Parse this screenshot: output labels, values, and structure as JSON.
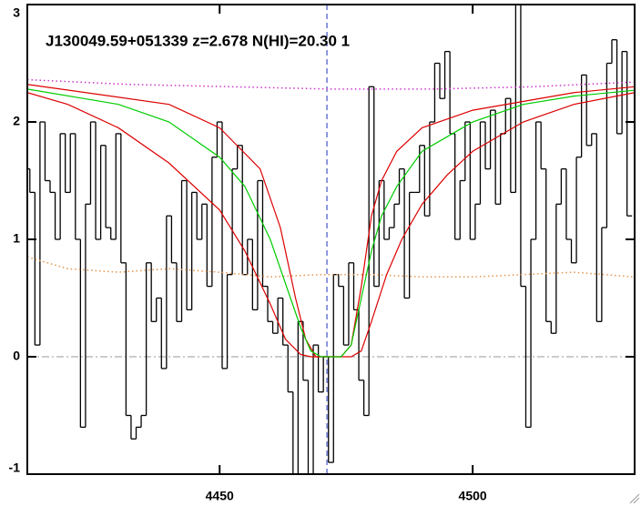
{
  "chart_data": {
    "type": "line",
    "title": "J130049.59+051339 z=2.678 N(HI)=20.30 1",
    "xlim": [
      4412,
      4532
    ],
    "ylim": [
      -1,
      3
    ],
    "xticks": [
      4450,
      4500
    ],
    "yticks": [
      -1,
      0,
      1,
      2,
      3
    ],
    "marker_x": 4471.2,
    "zero_line": 0,
    "series": [
      {
        "color": "#000000",
        "style": "step",
        "x": [
          4412,
          4413,
          4414,
          4415,
          4416,
          4417,
          4418,
          4419,
          4420,
          4421,
          4422,
          4423,
          4424,
          4425,
          4426,
          4427,
          4428,
          4429,
          4430,
          4431,
          4432,
          4433,
          4434,
          4435,
          4436,
          4437,
          4438,
          4439,
          4440,
          4441,
          4442,
          4443,
          4444,
          4445,
          4446,
          4447,
          4448,
          4449,
          4450,
          4451,
          4452,
          4453,
          4454,
          4455,
          4456,
          4457,
          4458,
          4459,
          4460,
          4461,
          4462,
          4463,
          4464,
          4465,
          4466,
          4467,
          4468,
          4469,
          4470,
          4471,
          4472,
          4473,
          4474,
          4475,
          4476,
          4477,
          4478,
          4479,
          4480,
          4481,
          4482,
          4483,
          4484,
          4485,
          4486,
          4487,
          4488,
          4489,
          4490,
          4491,
          4492,
          4493,
          4494,
          4495,
          4496,
          4497,
          4498,
          4499,
          4500,
          4501,
          4502,
          4503,
          4504,
          4505,
          4506,
          4507,
          4508,
          4509,
          4510,
          4511,
          4512,
          4513,
          4514,
          4515,
          4516,
          4517,
          4518,
          4519,
          4520,
          4521,
          4522,
          4523,
          4524,
          4525,
          4526,
          4527,
          4528,
          4529,
          4530,
          4531
        ],
        "values": [
          1.6,
          1.4,
          0.1,
          2.0,
          1.5,
          1.4,
          1.0,
          1.9,
          1.4,
          1.9,
          1.0,
          -0.6,
          1.3,
          2.0,
          1.0,
          1.8,
          1.1,
          1.0,
          1.9,
          0.8,
          -0.5,
          -0.7,
          -0.6,
          -0.5,
          0.8,
          0.3,
          0.5,
          -0.1,
          1.2,
          0.8,
          0.3,
          1.5,
          0.4,
          1.4,
          1.0,
          1.3,
          0.6,
          1.7,
          2.0,
          -0.1,
          0.7,
          1.6,
          1.8,
          0.7,
          1.0,
          0.4,
          1.5,
          0.6,
          0.3,
          0.2,
          0.5,
          0.1,
          -0.3,
          -1.0,
          0.3,
          -0.2,
          -1.0,
          0.1,
          -0.3,
          0.0,
          -0.9,
          0.7,
          0.6,
          0.1,
          0.8,
          0.4,
          -0.2,
          -0.5,
          2.3,
          0.6,
          1.5,
          1.0,
          1.1,
          1.3,
          1.6,
          0.5,
          1.4,
          1.4,
          1.8,
          1.2,
          2.0,
          2.5,
          2.2,
          2.6,
          1.9,
          1.0,
          1.5,
          2.0,
          1.0,
          1.3,
          2.0,
          1.6,
          2.1,
          1.3,
          1.9,
          2.2,
          1.4,
          3.0,
          0.6,
          -0.6,
          1.0,
          2.0,
          1.6,
          0.3,
          0.2,
          1.3,
          1.6,
          1.0,
          0.8,
          1.7,
          2.4,
          1.8,
          1.9,
          0.3,
          1.1,
          2.5,
          2.7,
          1.9,
          2.6,
          1.2
        ]
      },
      {
        "color": "#cc33cc",
        "style": "dotted",
        "x": [
          4412,
          4432,
          4452,
          4472,
          4492,
          4512,
          4532
        ],
        "values": [
          2.36,
          2.32,
          2.3,
          2.28,
          2.28,
          2.3,
          2.34
        ]
      },
      {
        "color": "#e8944a",
        "style": "dotted",
        "x": [
          4412,
          4420,
          4430,
          4440,
          4450,
          4460,
          4470,
          4480,
          4490,
          4500,
          4510,
          4520,
          4532
        ],
        "values": [
          0.85,
          0.75,
          0.72,
          0.75,
          0.72,
          0.68,
          0.7,
          0.7,
          0.68,
          0.68,
          0.7,
          0.72,
          0.68
        ]
      },
      {
        "color": "#dd0000",
        "style": "solid",
        "x": [
          4412,
          4420,
          4430,
          4440,
          4450,
          4455,
          4460,
          4463,
          4466,
          4468,
          4476,
          4478,
          4480,
          4483,
          4486,
          4490,
          4495,
          4500,
          4510,
          4520,
          4532
        ],
        "values": [
          2.25,
          2.15,
          1.95,
          1.65,
          1.25,
          0.9,
          0.45,
          0.15,
          0.02,
          0,
          0,
          0.05,
          0.3,
          0.7,
          1.0,
          1.3,
          1.55,
          1.75,
          2.0,
          2.15,
          2.25
        ]
      },
      {
        "color": "#dd0000",
        "style": "solid",
        "x": [
          4412,
          4440,
          4450,
          4458,
          4462,
          4465,
          4467,
          4469,
          4474,
          4476,
          4478,
          4480,
          4482,
          4485,
          4490,
          4500,
          4520,
          4532
        ],
        "values": [
          2.32,
          2.15,
          1.95,
          1.6,
          1.1,
          0.5,
          0.15,
          0,
          0,
          0.1,
          0.6,
          1.2,
          1.5,
          1.75,
          1.95,
          2.1,
          2.25,
          2.3
        ]
      },
      {
        "color": "#00cc00",
        "style": "solid",
        "x": [
          4412,
          4430,
          4440,
          4450,
          4455,
          4460,
          4464,
          4466,
          4468,
          4470,
          4474,
          4476,
          4478,
          4480,
          4482,
          4485,
          4490,
          4500,
          4510,
          4520,
          4532
        ],
        "values": [
          2.28,
          2.15,
          2.0,
          1.7,
          1.45,
          1.0,
          0.5,
          0.25,
          0.05,
          0,
          0,
          0.1,
          0.5,
          0.9,
          1.2,
          1.45,
          1.75,
          2.0,
          2.15,
          2.22,
          2.27
        ]
      }
    ]
  }
}
